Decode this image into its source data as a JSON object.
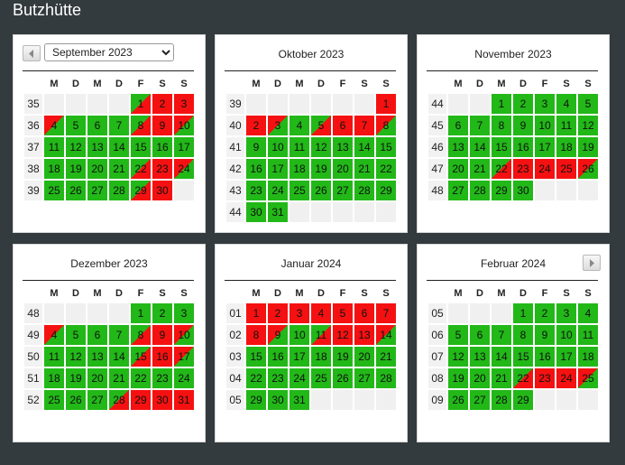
{
  "page": {
    "title": "Butzhütte"
  },
  "colors": {
    "free": "#22b818",
    "booked": "#f51111",
    "background": "#343b3e"
  },
  "nav": {
    "prev_icon": "triangle-left-icon",
    "next_icon": "triangle-right-icon"
  },
  "weekday_headers": [
    "M",
    "D",
    "M",
    "D",
    "F",
    "S",
    "S"
  ],
  "month_select": {
    "value": "September 2023",
    "options": [
      "September 2023"
    ]
  },
  "months": [
    {
      "title": "September 2023",
      "weeks": [
        {
          "wk": "35",
          "days": [
            [
              "",
              ""
            ],
            [
              "",
              ""
            ],
            [
              "",
              ""
            ],
            [
              "",
              ""
            ],
            [
              "1",
              "a"
            ],
            [
              "2",
              "b"
            ],
            [
              "3",
              "b"
            ]
          ]
        },
        {
          "wk": "36",
          "days": [
            [
              "4",
              "d"
            ],
            [
              "5",
              "f"
            ],
            [
              "6",
              "f"
            ],
            [
              "7",
              "f"
            ],
            [
              "8",
              "a"
            ],
            [
              "9",
              "b"
            ],
            [
              "10",
              "d"
            ]
          ]
        },
        {
          "wk": "37",
          "days": [
            [
              "11",
              "f"
            ],
            [
              "12",
              "f"
            ],
            [
              "13",
              "f"
            ],
            [
              "14",
              "f"
            ],
            [
              "15",
              "f"
            ],
            [
              "16",
              "f"
            ],
            [
              "17",
              "f"
            ]
          ]
        },
        {
          "wk": "38",
          "days": [
            [
              "18",
              "f"
            ],
            [
              "19",
              "f"
            ],
            [
              "20",
              "f"
            ],
            [
              "21",
              "f"
            ],
            [
              "22",
              "a"
            ],
            [
              "23",
              "b"
            ],
            [
              "24",
              "d"
            ]
          ]
        },
        {
          "wk": "39",
          "days": [
            [
              "25",
              "f"
            ],
            [
              "26",
              "f"
            ],
            [
              "27",
              "f"
            ],
            [
              "28",
              "f"
            ],
            [
              "29",
              "a"
            ],
            [
              "30",
              "b"
            ],
            [
              "",
              ""
            ]
          ]
        }
      ]
    },
    {
      "title": "Oktober 2023",
      "weeks": [
        {
          "wk": "39",
          "days": [
            [
              "",
              ""
            ],
            [
              "",
              ""
            ],
            [
              "",
              ""
            ],
            [
              "",
              ""
            ],
            [
              "",
              ""
            ],
            [
              "",
              ""
            ],
            [
              "1",
              "b"
            ]
          ]
        },
        {
          "wk": "40",
          "days": [
            [
              "2",
              "b"
            ],
            [
              "3",
              "d"
            ],
            [
              "4",
              "f"
            ],
            [
              "5",
              "a"
            ],
            [
              "6",
              "b"
            ],
            [
              "7",
              "b"
            ],
            [
              "8",
              "d"
            ]
          ]
        },
        {
          "wk": "41",
          "days": [
            [
              "9",
              "f"
            ],
            [
              "10",
              "f"
            ],
            [
              "11",
              "f"
            ],
            [
              "12",
              "f"
            ],
            [
              "13",
              "f"
            ],
            [
              "14",
              "f"
            ],
            [
              "15",
              "f"
            ]
          ]
        },
        {
          "wk": "42",
          "days": [
            [
              "16",
              "f"
            ],
            [
              "17",
              "f"
            ],
            [
              "18",
              "f"
            ],
            [
              "19",
              "f"
            ],
            [
              "20",
              "f"
            ],
            [
              "21",
              "f"
            ],
            [
              "22",
              "f"
            ]
          ]
        },
        {
          "wk": "43",
          "days": [
            [
              "23",
              "f"
            ],
            [
              "24",
              "f"
            ],
            [
              "25",
              "f"
            ],
            [
              "26",
              "f"
            ],
            [
              "27",
              "f"
            ],
            [
              "28",
              "f"
            ],
            [
              "29",
              "f"
            ]
          ]
        },
        {
          "wk": "44",
          "days": [
            [
              "30",
              "f"
            ],
            [
              "31",
              "f"
            ],
            [
              "",
              ""
            ],
            [
              "",
              ""
            ],
            [
              "",
              ""
            ],
            [
              "",
              ""
            ],
            [
              "",
              ""
            ]
          ]
        }
      ]
    },
    {
      "title": "November 2023",
      "weeks": [
        {
          "wk": "44",
          "days": [
            [
              "",
              ""
            ],
            [
              "",
              ""
            ],
            [
              "1",
              "f"
            ],
            [
              "2",
              "f"
            ],
            [
              "3",
              "f"
            ],
            [
              "4",
              "f"
            ],
            [
              "5",
              "f"
            ]
          ]
        },
        {
          "wk": "45",
          "days": [
            [
              "6",
              "f"
            ],
            [
              "7",
              "f"
            ],
            [
              "8",
              "f"
            ],
            [
              "9",
              "f"
            ],
            [
              "10",
              "f"
            ],
            [
              "11",
              "f"
            ],
            [
              "12",
              "f"
            ]
          ]
        },
        {
          "wk": "46",
          "days": [
            [
              "13",
              "f"
            ],
            [
              "14",
              "f"
            ],
            [
              "15",
              "f"
            ],
            [
              "16",
              "f"
            ],
            [
              "17",
              "f"
            ],
            [
              "18",
              "f"
            ],
            [
              "19",
              "f"
            ]
          ]
        },
        {
          "wk": "47",
          "days": [
            [
              "20",
              "f"
            ],
            [
              "21",
              "f"
            ],
            [
              "22",
              "a"
            ],
            [
              "23",
              "b"
            ],
            [
              "24",
              "b"
            ],
            [
              "25",
              "b"
            ],
            [
              "26",
              "d"
            ]
          ]
        },
        {
          "wk": "48",
          "days": [
            [
              "27",
              "f"
            ],
            [
              "28",
              "f"
            ],
            [
              "29",
              "f"
            ],
            [
              "30",
              "f"
            ],
            [
              "",
              ""
            ],
            [
              "",
              ""
            ],
            [
              "",
              ""
            ]
          ]
        }
      ]
    },
    {
      "title": "Dezember 2023",
      "weeks": [
        {
          "wk": "48",
          "days": [
            [
              "",
              ""
            ],
            [
              "",
              ""
            ],
            [
              "",
              ""
            ],
            [
              "",
              ""
            ],
            [
              "1",
              "f"
            ],
            [
              "2",
              "f"
            ],
            [
              "3",
              "f"
            ]
          ]
        },
        {
          "wk": "49",
          "days": [
            [
              "4",
              "d"
            ],
            [
              "5",
              "f"
            ],
            [
              "6",
              "f"
            ],
            [
              "7",
              "f"
            ],
            [
              "8",
              "a"
            ],
            [
              "9",
              "b"
            ],
            [
              "10",
              "d"
            ]
          ]
        },
        {
          "wk": "50",
          "days": [
            [
              "11",
              "f"
            ],
            [
              "12",
              "f"
            ],
            [
              "13",
              "f"
            ],
            [
              "14",
              "f"
            ],
            [
              "15",
              "a"
            ],
            [
              "16",
              "b"
            ],
            [
              "17",
              "d"
            ]
          ]
        },
        {
          "wk": "51",
          "days": [
            [
              "18",
              "f"
            ],
            [
              "19",
              "f"
            ],
            [
              "20",
              "f"
            ],
            [
              "21",
              "f"
            ],
            [
              "22",
              "f"
            ],
            [
              "23",
              "f"
            ],
            [
              "24",
              "f"
            ]
          ]
        },
        {
          "wk": "52",
          "days": [
            [
              "25",
              "f"
            ],
            [
              "26",
              "f"
            ],
            [
              "27",
              "f"
            ],
            [
              "28",
              "a"
            ],
            [
              "29",
              "b"
            ],
            [
              "30",
              "b"
            ],
            [
              "31",
              "b"
            ]
          ]
        }
      ]
    },
    {
      "title": "Januar 2024",
      "weeks": [
        {
          "wk": "01",
          "days": [
            [
              "1",
              "b"
            ],
            [
              "2",
              "b"
            ],
            [
              "3",
              "b"
            ],
            [
              "4",
              "b"
            ],
            [
              "5",
              "b"
            ],
            [
              "6",
              "b"
            ],
            [
              "7",
              "b"
            ]
          ]
        },
        {
          "wk": "02",
          "days": [
            [
              "8",
              "b"
            ],
            [
              "9",
              "d"
            ],
            [
              "10",
              "f"
            ],
            [
              "11",
              "a"
            ],
            [
              "12",
              "b"
            ],
            [
              "13",
              "b"
            ],
            [
              "14",
              "d"
            ]
          ]
        },
        {
          "wk": "03",
          "days": [
            [
              "15",
              "f"
            ],
            [
              "16",
              "f"
            ],
            [
              "17",
              "f"
            ],
            [
              "18",
              "f"
            ],
            [
              "19",
              "f"
            ],
            [
              "20",
              "f"
            ],
            [
              "21",
              "f"
            ]
          ]
        },
        {
          "wk": "04",
          "days": [
            [
              "22",
              "f"
            ],
            [
              "23",
              "f"
            ],
            [
              "24",
              "f"
            ],
            [
              "25",
              "f"
            ],
            [
              "26",
              "f"
            ],
            [
              "27",
              "f"
            ],
            [
              "28",
              "f"
            ]
          ]
        },
        {
          "wk": "05",
          "days": [
            [
              "29",
              "f"
            ],
            [
              "30",
              "f"
            ],
            [
              "31",
              "f"
            ],
            [
              "",
              ""
            ],
            [
              "",
              ""
            ],
            [
              "",
              ""
            ],
            [
              "",
              ""
            ]
          ]
        }
      ]
    },
    {
      "title": "Februar 2024",
      "weeks": [
        {
          "wk": "05",
          "days": [
            [
              "",
              ""
            ],
            [
              "",
              ""
            ],
            [
              "",
              ""
            ],
            [
              "1",
              "f"
            ],
            [
              "2",
              "f"
            ],
            [
              "3",
              "f"
            ],
            [
              "4",
              "f"
            ]
          ]
        },
        {
          "wk": "06",
          "days": [
            [
              "5",
              "f"
            ],
            [
              "6",
              "f"
            ],
            [
              "7",
              "f"
            ],
            [
              "8",
              "f"
            ],
            [
              "9",
              "f"
            ],
            [
              "10",
              "f"
            ],
            [
              "11",
              "f"
            ]
          ]
        },
        {
          "wk": "07",
          "days": [
            [
              "12",
              "f"
            ],
            [
              "13",
              "f"
            ],
            [
              "14",
              "f"
            ],
            [
              "15",
              "f"
            ],
            [
              "16",
              "f"
            ],
            [
              "17",
              "f"
            ],
            [
              "18",
              "f"
            ]
          ]
        },
        {
          "wk": "08",
          "days": [
            [
              "19",
              "f"
            ],
            [
              "20",
              "f"
            ],
            [
              "21",
              "f"
            ],
            [
              "22",
              "a"
            ],
            [
              "23",
              "b"
            ],
            [
              "24",
              "b"
            ],
            [
              "25",
              "d"
            ]
          ]
        },
        {
          "wk": "09",
          "days": [
            [
              "26",
              "f"
            ],
            [
              "27",
              "f"
            ],
            [
              "28",
              "f"
            ],
            [
              "29",
              "f"
            ],
            [
              "",
              ""
            ],
            [
              "",
              ""
            ],
            [
              "",
              ""
            ]
          ]
        }
      ]
    }
  ]
}
